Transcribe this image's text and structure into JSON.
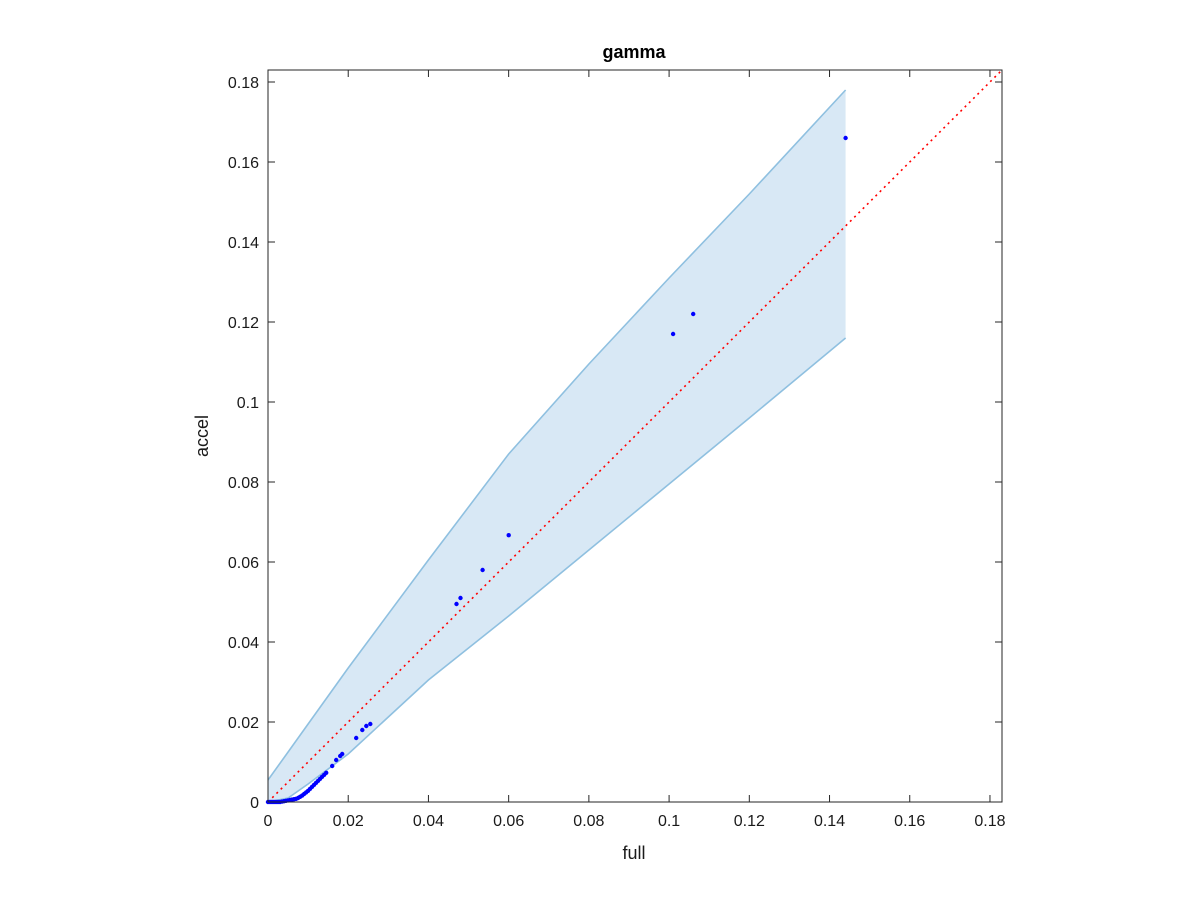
{
  "chart_data": {
    "type": "scatter",
    "title": "gamma",
    "xlabel": "full",
    "ylabel": "accel",
    "xlim": [
      0,
      0.183
    ],
    "ylim": [
      0,
      0.183
    ],
    "xticks": [
      0,
      0.02,
      0.04,
      0.06,
      0.08,
      0.1,
      0.12,
      0.14,
      0.16,
      0.18
    ],
    "yticks": [
      0,
      0.02,
      0.04,
      0.06,
      0.08,
      0.1,
      0.12,
      0.14,
      0.16,
      0.18
    ],
    "xtick_labels": [
      "0",
      "0.02",
      "0.04",
      "0.06",
      "0.08",
      "0.1",
      "0.12",
      "0.14",
      "0.16",
      "0.18"
    ],
    "ytick_labels": [
      "0",
      "0.02",
      "0.04",
      "0.06",
      "0.08",
      "0.1",
      "0.12",
      "0.14",
      "0.16",
      "0.18"
    ],
    "grid": false,
    "colors": {
      "points": "#0000ff",
      "band_fill": "#d8e8f5",
      "band_edge": "#8fc0e0",
      "reference_line": "#ff0000",
      "axes": "#262626"
    },
    "band": {
      "x": [
        0,
        0.005,
        0.01,
        0.02,
        0.04,
        0.06,
        0.08,
        0.1,
        0.12,
        0.144
      ],
      "upper": [
        0.0055,
        0.0125,
        0.0195,
        0.0335,
        0.0605,
        0.087,
        0.1095,
        0.131,
        0.152,
        0.178
      ],
      "lower": [
        0,
        0.001,
        0.0045,
        0.012,
        0.0305,
        0.0465,
        0.063,
        0.0795,
        0.096,
        0.116
      ]
    },
    "reference_line": {
      "x": [
        0,
        0.183
      ],
      "y": [
        0,
        0.183
      ]
    },
    "points": {
      "x": [
        0,
        0.0005,
        0.001,
        0.0015,
        0.002,
        0.0025,
        0.003,
        0.0035,
        0.004,
        0.0045,
        0.005,
        0.0055,
        0.006,
        0.0065,
        0.007,
        0.0075,
        0.008,
        0.0085,
        0.009,
        0.0095,
        0.01,
        0.0105,
        0.011,
        0.0115,
        0.012,
        0.0125,
        0.013,
        0.0135,
        0.014,
        0.0145,
        0.016,
        0.017,
        0.018,
        0.0185,
        0.022,
        0.0235,
        0.0245,
        0.0255,
        0.047,
        0.048,
        0.0535,
        0.06,
        0.101,
        0.106,
        0.144
      ],
      "y": [
        0,
        0,
        0,
        0,
        0,
        0,
        0,
        0.0001,
        0.0002,
        0.0003,
        0.0004,
        0.0005,
        0.0006,
        0.0007,
        0.0008,
        0.001,
        0.0013,
        0.0016,
        0.002,
        0.0024,
        0.0028,
        0.0033,
        0.0038,
        0.0043,
        0.0048,
        0.0053,
        0.0058,
        0.0063,
        0.0068,
        0.0073,
        0.009,
        0.0105,
        0.0115,
        0.012,
        0.016,
        0.018,
        0.019,
        0.0195,
        0.0495,
        0.051,
        0.058,
        0.0667,
        0.117,
        0.122,
        0.166
      ]
    }
  }
}
